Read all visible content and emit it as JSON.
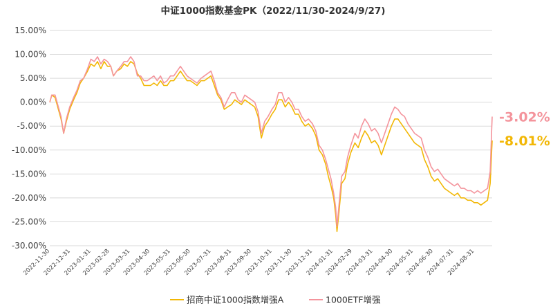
{
  "chart_data": {
    "type": "line",
    "title": "中证1000指数基金PK（2022/11/30-2024/9/27)",
    "xlabel": "",
    "ylabel": "",
    "ylim": [
      -30,
      15
    ],
    "yticks": [
      15,
      10,
      5,
      0,
      -5,
      -10,
      -15,
      -20,
      -25,
      -30
    ],
    "ytick_labels": [
      "15.00%",
      "10.00%",
      "5.00%",
      "0.00%",
      "-5.00%",
      "-10.00%",
      "-15.00%",
      "-20.00%",
      "-25.00%",
      "-30.00%"
    ],
    "x_range": [
      "2022-11-30",
      "2024-09-27"
    ],
    "xtick_labels": [
      "2022-11-30",
      "2022-12-31",
      "2023-01-31",
      "2023-02-28",
      "2023-03-31",
      "2023-04-30",
      "2023-05-31",
      "2023-06-30",
      "2023-07-31",
      "2023-08-31",
      "2023-09-30",
      "2023-10-31",
      "2023-11-30",
      "2023-12-31",
      "2024-01-31",
      "2024-02-29",
      "2024-03-31",
      "2024-04-30",
      "2024-05-31",
      "2024-06-30",
      "2024-07-31",
      "2024-08-31"
    ],
    "grid": true,
    "legend_position": "bottom",
    "series": [
      {
        "name": "招商中证1000指数增强A",
        "color": "#F2B705",
        "end_label": "-8.01%",
        "points": [
          [
            "2022-11-30",
            0.0
          ],
          [
            "2022-12-03",
            1.5
          ],
          [
            "2022-12-08",
            1.0
          ],
          [
            "2022-12-12",
            -1.0
          ],
          [
            "2022-12-17",
            -3.5
          ],
          [
            "2022-12-21",
            -6.5
          ],
          [
            "2022-12-25",
            -4.0
          ],
          [
            "2022-12-30",
            -1.5
          ],
          [
            "2023-01-05",
            0.5
          ],
          [
            "2023-01-10",
            2.0
          ],
          [
            "2023-01-15",
            4.0
          ],
          [
            "2023-01-20",
            5.0
          ],
          [
            "2023-01-26",
            6.5
          ],
          [
            "2023-01-31",
            8.0
          ],
          [
            "2023-02-05",
            7.5
          ],
          [
            "2023-02-10",
            8.5
          ],
          [
            "2023-02-15",
            7.0
          ],
          [
            "2023-02-20",
            8.5
          ],
          [
            "2023-02-25",
            7.5
          ],
          [
            "2023-03-02",
            7.5
          ],
          [
            "2023-03-06",
            5.5
          ],
          [
            "2023-03-11",
            6.5
          ],
          [
            "2023-03-17",
            7.0
          ],
          [
            "2023-03-22",
            8.0
          ],
          [
            "2023-03-27",
            7.5
          ],
          [
            "2023-04-01",
            8.5
          ],
          [
            "2023-04-06",
            8.0
          ],
          [
            "2023-04-11",
            6.0
          ],
          [
            "2023-04-16",
            5.0
          ],
          [
            "2023-04-21",
            3.5
          ],
          [
            "2023-04-26",
            3.5
          ],
          [
            "2023-05-01",
            3.5
          ],
          [
            "2023-05-06",
            4.0
          ],
          [
            "2023-05-11",
            3.5
          ],
          [
            "2023-05-16",
            4.5
          ],
          [
            "2023-05-21",
            3.5
          ],
          [
            "2023-05-26",
            3.5
          ],
          [
            "2023-05-31",
            4.5
          ],
          [
            "2023-06-05",
            4.5
          ],
          [
            "2023-06-10",
            5.5
          ],
          [
            "2023-06-15",
            6.5
          ],
          [
            "2023-06-20",
            5.5
          ],
          [
            "2023-06-25",
            4.5
          ],
          [
            "2023-06-30",
            4.5
          ],
          [
            "2023-07-05",
            4.0
          ],
          [
            "2023-07-10",
            3.5
          ],
          [
            "2023-07-16",
            4.5
          ],
          [
            "2023-07-21",
            4.5
          ],
          [
            "2023-07-26",
            5.0
          ],
          [
            "2023-07-31",
            5.5
          ],
          [
            "2023-08-05",
            3.5
          ],
          [
            "2023-08-10",
            1.5
          ],
          [
            "2023-08-15",
            0.5
          ],
          [
            "2023-08-20",
            -1.5
          ],
          [
            "2023-08-25",
            -1.0
          ],
          [
            "2023-08-31",
            -0.5
          ],
          [
            "2023-09-05",
            0.5
          ],
          [
            "2023-09-10",
            0.0
          ],
          [
            "2023-09-15",
            -0.5
          ],
          [
            "2023-09-20",
            0.5
          ],
          [
            "2023-09-25",
            0.0
          ],
          [
            "2023-09-30",
            -0.5
          ],
          [
            "2023-10-05",
            -1.0
          ],
          [
            "2023-10-10",
            -3.0
          ],
          [
            "2023-10-15",
            -7.5
          ],
          [
            "2023-10-20",
            -5.0
          ],
          [
            "2023-10-25",
            -4.0
          ],
          [
            "2023-10-31",
            -2.5
          ],
          [
            "2023-11-05",
            -1.5
          ],
          [
            "2023-11-10",
            0.5
          ],
          [
            "2023-11-15",
            0.5
          ],
          [
            "2023-11-20",
            -1.0
          ],
          [
            "2023-11-25",
            0.0
          ],
          [
            "2023-11-30",
            -1.0
          ],
          [
            "2023-12-05",
            -2.5
          ],
          [
            "2023-12-10",
            -2.5
          ],
          [
            "2023-12-15",
            -4.0
          ],
          [
            "2023-12-20",
            -5.0
          ],
          [
            "2023-12-25",
            -4.5
          ],
          [
            "2023-12-31",
            -5.5
          ],
          [
            "2024-01-05",
            -7.0
          ],
          [
            "2024-01-10",
            -10.0
          ],
          [
            "2024-01-15",
            -11.0
          ],
          [
            "2024-01-20",
            -13.0
          ],
          [
            "2024-01-24",
            -15.5
          ],
          [
            "2024-01-28",
            -17.5
          ],
          [
            "2024-02-01",
            -20.0
          ],
          [
            "2024-02-04",
            -23.5
          ],
          [
            "2024-02-06",
            -27.0
          ],
          [
            "2024-02-09",
            -23.0
          ],
          [
            "2024-02-13",
            -17.0
          ],
          [
            "2024-02-18",
            -16.0
          ],
          [
            "2024-02-22",
            -13.0
          ],
          [
            "2024-02-27",
            -10.5
          ],
          [
            "2024-03-04",
            -8.5
          ],
          [
            "2024-03-09",
            -9.5
          ],
          [
            "2024-03-14",
            -7.5
          ],
          [
            "2024-03-19",
            -6.0
          ],
          [
            "2024-03-24",
            -7.0
          ],
          [
            "2024-03-29",
            -8.5
          ],
          [
            "2024-04-03",
            -8.0
          ],
          [
            "2024-04-08",
            -9.0
          ],
          [
            "2024-04-13",
            -11.0
          ],
          [
            "2024-04-18",
            -9.0
          ],
          [
            "2024-04-23",
            -7.0
          ],
          [
            "2024-04-28",
            -5.0
          ],
          [
            "2024-05-03",
            -3.5
          ],
          [
            "2024-05-08",
            -3.5
          ],
          [
            "2024-05-13",
            -4.5
          ],
          [
            "2024-05-18",
            -5.5
          ],
          [
            "2024-05-23",
            -6.5
          ],
          [
            "2024-05-28",
            -7.5
          ],
          [
            "2024-06-02",
            -8.5
          ],
          [
            "2024-06-07",
            -9.0
          ],
          [
            "2024-06-12",
            -9.5
          ],
          [
            "2024-06-17",
            -12.0
          ],
          [
            "2024-06-22",
            -13.5
          ],
          [
            "2024-06-27",
            -15.5
          ],
          [
            "2024-07-02",
            -16.5
          ],
          [
            "2024-07-07",
            -16.0
          ],
          [
            "2024-07-12",
            -17.0
          ],
          [
            "2024-07-17",
            -18.0
          ],
          [
            "2024-07-22",
            -18.5
          ],
          [
            "2024-07-27",
            -19.0
          ],
          [
            "2024-08-01",
            -19.5
          ],
          [
            "2024-08-06",
            -19.0
          ],
          [
            "2024-08-11",
            -20.0
          ],
          [
            "2024-08-16",
            -20.0
          ],
          [
            "2024-08-21",
            -20.5
          ],
          [
            "2024-08-26",
            -20.5
          ],
          [
            "2024-08-31",
            -21.0
          ],
          [
            "2024-09-05",
            -21.0
          ],
          [
            "2024-09-10",
            -21.5
          ],
          [
            "2024-09-15",
            -21.0
          ],
          [
            "2024-09-20",
            -20.5
          ],
          [
            "2024-09-24",
            -17.0
          ],
          [
            "2024-09-27",
            -8.01
          ]
        ]
      },
      {
        "name": "1000ETF增强",
        "color": "#F4949C",
        "end_label": "-3.02%",
        "points": [
          [
            "2022-11-30",
            0.0
          ],
          [
            "2022-12-03",
            1.5
          ],
          [
            "2022-12-08",
            1.5
          ],
          [
            "2022-12-12",
            -0.5
          ],
          [
            "2022-12-17",
            -3.0
          ],
          [
            "2022-12-21",
            -6.5
          ],
          [
            "2022-12-25",
            -3.5
          ],
          [
            "2022-12-30",
            -1.0
          ],
          [
            "2023-01-05",
            1.0
          ],
          [
            "2023-01-10",
            2.5
          ],
          [
            "2023-01-15",
            4.5
          ],
          [
            "2023-01-20",
            5.0
          ],
          [
            "2023-01-26",
            7.0
          ],
          [
            "2023-01-31",
            9.0
          ],
          [
            "2023-02-05",
            8.5
          ],
          [
            "2023-02-10",
            9.5
          ],
          [
            "2023-02-15",
            8.0
          ],
          [
            "2023-02-20",
            9.0
          ],
          [
            "2023-02-25",
            8.5
          ],
          [
            "2023-03-02",
            7.5
          ],
          [
            "2023-03-06",
            5.5
          ],
          [
            "2023-03-11",
            6.5
          ],
          [
            "2023-03-17",
            7.5
          ],
          [
            "2023-03-22",
            8.5
          ],
          [
            "2023-03-27",
            8.5
          ],
          [
            "2023-04-01",
            9.5
          ],
          [
            "2023-04-06",
            8.5
          ],
          [
            "2023-04-11",
            5.5
          ],
          [
            "2023-04-16",
            5.5
          ],
          [
            "2023-04-21",
            4.5
          ],
          [
            "2023-04-26",
            4.5
          ],
          [
            "2023-05-01",
            5.0
          ],
          [
            "2023-05-06",
            5.5
          ],
          [
            "2023-05-11",
            4.5
          ],
          [
            "2023-05-16",
            5.5
          ],
          [
            "2023-05-21",
            4.0
          ],
          [
            "2023-05-26",
            4.5
          ],
          [
            "2023-05-31",
            5.5
          ],
          [
            "2023-06-05",
            5.5
          ],
          [
            "2023-06-10",
            6.5
          ],
          [
            "2023-06-15",
            7.5
          ],
          [
            "2023-06-20",
            6.5
          ],
          [
            "2023-06-25",
            5.5
          ],
          [
            "2023-06-30",
            5.0
          ],
          [
            "2023-07-05",
            4.5
          ],
          [
            "2023-07-10",
            4.0
          ],
          [
            "2023-07-16",
            5.0
          ],
          [
            "2023-07-21",
            5.5
          ],
          [
            "2023-07-26",
            6.0
          ],
          [
            "2023-07-31",
            6.5
          ],
          [
            "2023-08-05",
            4.5
          ],
          [
            "2023-08-10",
            2.0
          ],
          [
            "2023-08-15",
            1.0
          ],
          [
            "2023-08-20",
            -1.0
          ],
          [
            "2023-08-25",
            0.5
          ],
          [
            "2023-08-31",
            2.0
          ],
          [
            "2023-09-05",
            2.0
          ],
          [
            "2023-09-10",
            0.5
          ],
          [
            "2023-09-15",
            0.0
          ],
          [
            "2023-09-20",
            1.5
          ],
          [
            "2023-09-25",
            1.0
          ],
          [
            "2023-09-30",
            0.5
          ],
          [
            "2023-10-05",
            0.0
          ],
          [
            "2023-10-10",
            -2.0
          ],
          [
            "2023-10-15",
            -6.5
          ],
          [
            "2023-10-20",
            -4.0
          ],
          [
            "2023-10-25",
            -3.0
          ],
          [
            "2023-10-31",
            -1.5
          ],
          [
            "2023-11-05",
            -0.5
          ],
          [
            "2023-11-10",
            2.0
          ],
          [
            "2023-11-15",
            2.0
          ],
          [
            "2023-11-20",
            0.0
          ],
          [
            "2023-11-25",
            1.0
          ],
          [
            "2023-11-30",
            0.0
          ],
          [
            "2023-12-05",
            -1.5
          ],
          [
            "2023-12-10",
            -1.5
          ],
          [
            "2023-12-15",
            -3.0
          ],
          [
            "2023-12-20",
            -4.0
          ],
          [
            "2023-12-25",
            -3.5
          ],
          [
            "2023-12-31",
            -4.5
          ],
          [
            "2024-01-05",
            -6.0
          ],
          [
            "2024-01-10",
            -9.0
          ],
          [
            "2024-01-15",
            -10.0
          ],
          [
            "2024-01-20",
            -12.0
          ],
          [
            "2024-01-24",
            -14.0
          ],
          [
            "2024-01-28",
            -16.0
          ],
          [
            "2024-02-01",
            -19.0
          ],
          [
            "2024-02-04",
            -22.0
          ],
          [
            "2024-02-06",
            -26.0
          ],
          [
            "2024-02-09",
            -21.5
          ],
          [
            "2024-02-13",
            -15.5
          ],
          [
            "2024-02-18",
            -14.5
          ],
          [
            "2024-02-22",
            -11.5
          ],
          [
            "2024-02-27",
            -9.0
          ],
          [
            "2024-03-04",
            -6.5
          ],
          [
            "2024-03-09",
            -7.5
          ],
          [
            "2024-03-14",
            -5.0
          ],
          [
            "2024-03-19",
            -3.5
          ],
          [
            "2024-03-24",
            -4.5
          ],
          [
            "2024-03-29",
            -6.0
          ],
          [
            "2024-04-03",
            -5.5
          ],
          [
            "2024-04-08",
            -6.5
          ],
          [
            "2024-04-13",
            -8.5
          ],
          [
            "2024-04-18",
            -6.5
          ],
          [
            "2024-04-23",
            -4.5
          ],
          [
            "2024-04-28",
            -2.5
          ],
          [
            "2024-05-03",
            -1.0
          ],
          [
            "2024-05-08",
            -1.5
          ],
          [
            "2024-05-13",
            -2.5
          ],
          [
            "2024-05-18",
            -3.0
          ],
          [
            "2024-05-23",
            -4.5
          ],
          [
            "2024-05-28",
            -5.5
          ],
          [
            "2024-06-02",
            -6.5
          ],
          [
            "2024-06-07",
            -7.0
          ],
          [
            "2024-06-12",
            -7.5
          ],
          [
            "2024-06-17",
            -10.0
          ],
          [
            "2024-06-22",
            -11.5
          ],
          [
            "2024-06-27",
            -13.5
          ],
          [
            "2024-07-02",
            -14.5
          ],
          [
            "2024-07-07",
            -14.0
          ],
          [
            "2024-07-12",
            -15.0
          ],
          [
            "2024-07-17",
            -16.0
          ],
          [
            "2024-07-22",
            -16.5
          ],
          [
            "2024-07-27",
            -17.0
          ],
          [
            "2024-08-01",
            -17.5
          ],
          [
            "2024-08-06",
            -17.0
          ],
          [
            "2024-08-11",
            -18.0
          ],
          [
            "2024-08-16",
            -18.0
          ],
          [
            "2024-08-21",
            -18.5
          ],
          [
            "2024-08-26",
            -18.5
          ],
          [
            "2024-08-31",
            -19.0
          ],
          [
            "2024-09-05",
            -18.5
          ],
          [
            "2024-09-10",
            -19.0
          ],
          [
            "2024-09-15",
            -18.5
          ],
          [
            "2024-09-20",
            -18.0
          ],
          [
            "2024-09-24",
            -14.5
          ],
          [
            "2024-09-27",
            -3.02
          ]
        ]
      }
    ]
  }
}
